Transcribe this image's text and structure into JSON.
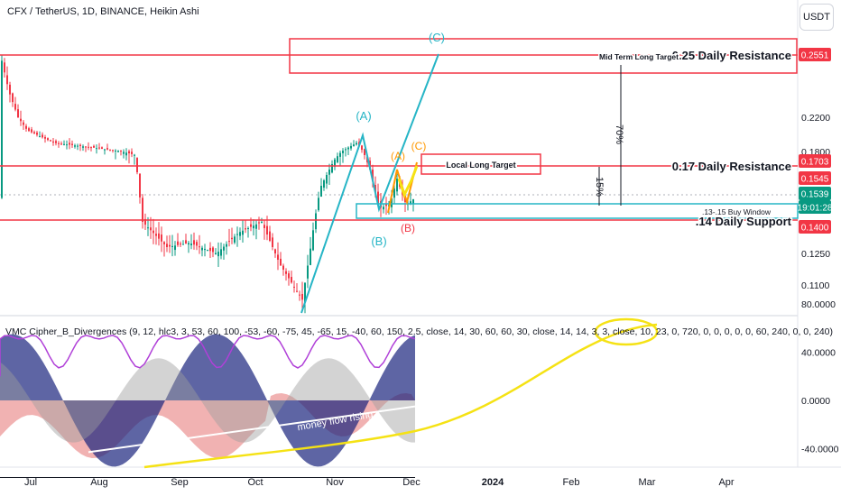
{
  "header": {
    "symbol_title": "CFX / TetherUS, 1D, BINANCE, Heikin Ashi",
    "currency_button": "USDT",
    "indicator_title": "VMC Cipher_B_Divergences (9, 12, hlc3, 3, 53, 60, 100, -53, -60, -75, 45, -65, 15, -40, 60, 150, 2.5, close, 14, 30, 60, 60, 30, close, 14, 14, 3, 3, close, 10, 23, 0, 720, 0, 0, 0, 0, 0, 60, 240, 0, 0, 240)"
  },
  "colors": {
    "resistance": "#f23645",
    "wave": "#26b5c6",
    "orange_wave": "#ff9800",
    "yellow": "#f5e214",
    "candle_up": "#089981",
    "candle_down": "#f23645",
    "money_flow_red": "#e57373",
    "wave_blue": "#1a237e",
    "purple": "#b040d8"
  },
  "chart_data": [
    {
      "type": "candlestick",
      "title": "CFX / TetherUS, 1D, BINANCE, Heikin Ashi",
      "y_axis_ticks": [
        0.11,
        0.125,
        0.14,
        0.16,
        0.18,
        0.22,
        0.26
      ],
      "y_axis_tick_labels": [
        "0.1100",
        "0.1250",
        "0.1400",
        "0.1600",
        "0.1800",
        "0.2200",
        "0.2600"
      ],
      "x_axis_labels": [
        "Jul",
        "Aug",
        "Sep",
        "Oct",
        "Nov",
        "Dec",
        "2024",
        "Feb",
        "Mar",
        "Apr"
      ],
      "ylim": [
        0.095,
        0.28
      ],
      "price_labels": [
        {
          "text": "0.2551",
          "value": 0.2551,
          "kind": "red"
        },
        {
          "text": "0.1703",
          "value": 0.1703,
          "kind": "red"
        },
        {
          "text": "0.1545",
          "value": 0.1545,
          "kind": "red"
        },
        {
          "text": "0.1539",
          "value": 0.1539,
          "kind": "green"
        },
        {
          "text": "19:01:28",
          "value": 0.1495,
          "kind": "green"
        },
        {
          "text": "0.1400",
          "value": 0.14,
          "kind": "red"
        }
      ],
      "levels": [
        {
          "label": "0.25 Daily Resistance",
          "value": 0.2551
        },
        {
          "label": "0.17 Daily Resistance",
          "value": 0.1703
        },
        {
          "label": ".14 Daily Support",
          "value": 0.14
        }
      ],
      "annotations": {
        "mid_term_target": "Mid Term Long Target",
        "local_target": "Local Long Target",
        "buy_window": ".13-.15 Buy Window",
        "pct_70": "70%",
        "pct_15": "15%",
        "wave_c_top": "(C)",
        "wave_a": "(A)",
        "wave_b": "(B)",
        "orange_a": "(A)",
        "orange_b": "(B)",
        "orange_c": "(C)"
      }
    },
    {
      "type": "area",
      "title": "VMC Cipher_B_Divergences",
      "y_axis_ticks": [
        80,
        40,
        0,
        -40
      ],
      "y_axis_tick_labels": [
        "80.0000",
        "40.0000",
        "0.0000",
        "-40.0000"
      ],
      "ylim": [
        -65,
        85
      ],
      "annotations": {
        "money_flow": "money flow rising"
      }
    }
  ]
}
